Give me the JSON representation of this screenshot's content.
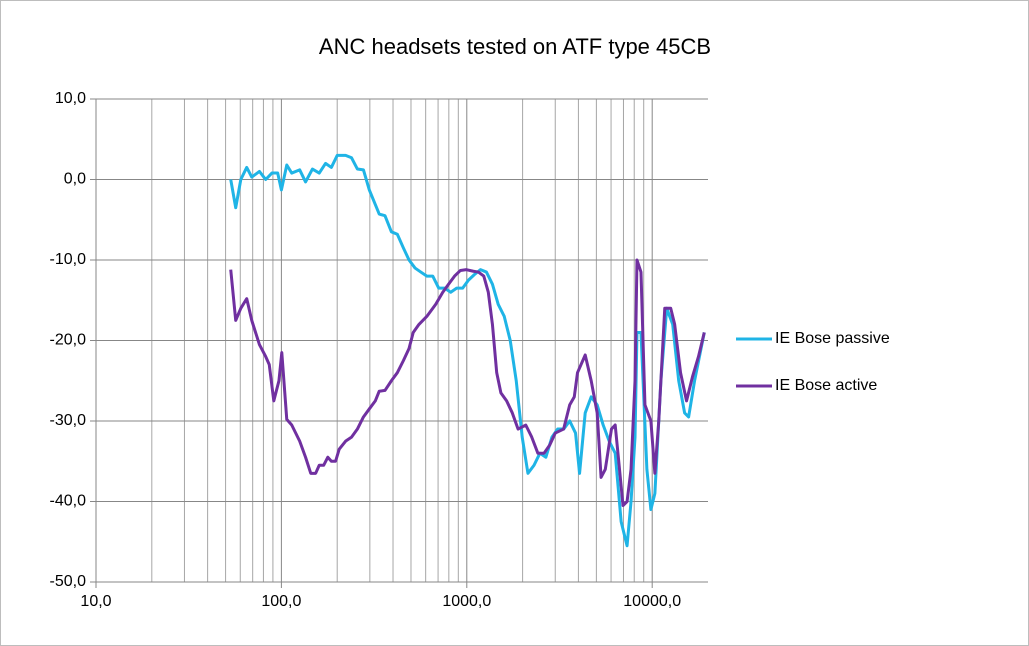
{
  "chart_data": {
    "type": "line",
    "title": "ANC headsets tested on ATF type 45CB",
    "xscale": "log",
    "xlim": [
      10,
      20000
    ],
    "xticks": [
      {
        "value": 10,
        "label": "10,0"
      },
      {
        "value": 100,
        "label": "100,0"
      },
      {
        "value": 1000,
        "label": "1000,0"
      },
      {
        "value": 10000,
        "label": "10000,0"
      }
    ],
    "ylim": [
      -50,
      10
    ],
    "yticks": [
      {
        "value": -50,
        "label": "-50,0"
      },
      {
        "value": -40,
        "label": "-40,0"
      },
      {
        "value": -30,
        "label": "-30,0"
      },
      {
        "value": -20,
        "label": "-20,0"
      },
      {
        "value": -10,
        "label": "-10,0"
      },
      {
        "value": 0,
        "label": "0,0"
      },
      {
        "value": 10,
        "label": "10,0"
      }
    ],
    "grid": true,
    "legend": "right",
    "series": [
      {
        "name": "IE Bose passive",
        "color": "#1fb4e6",
        "x": [
          53.3,
          56.7,
          60.4,
          65,
          69.2,
          76.1,
          82.3,
          88.9,
          95.5,
          100,
          106.9,
          113.7,
          125.5,
          135,
          147,
          160,
          173,
          186,
          200,
          222,
          239,
          257,
          277,
          298,
          337,
          362,
          392,
          422,
          455,
          488,
          526,
          565,
          609,
          655,
          706,
          760,
          819,
          882,
          950,
          1021,
          1100,
          1185,
          1276,
          1375,
          1477,
          1592,
          1715,
          1848,
          1990,
          2137,
          2305,
          2480,
          2670,
          2880,
          3092,
          3330,
          3590,
          3860,
          4058,
          4352,
          4688,
          5050,
          5440,
          5861,
          6316,
          6800,
          7140,
          7320,
          7690,
          8080,
          8279,
          8700,
          9363,
          9840,
          10340,
          11140,
          11977,
          12900,
          13900,
          14960,
          15720,
          16930,
          19100
        ],
        "values": [
          0,
          -3.5,
          0,
          1.5,
          0.3,
          1,
          0,
          0.8,
          0.8,
          -1.3,
          1.8,
          0.8,
          1.2,
          -0.3,
          1.3,
          0.8,
          2,
          1.5,
          3,
          3,
          2.7,
          1.3,
          1.2,
          -1.3,
          -4.3,
          -4.5,
          -6.5,
          -6.8,
          -8.5,
          -10,
          -11,
          -11.5,
          -12,
          -12,
          -13.5,
          -13.5,
          -14,
          -13.5,
          -13.5,
          -12.5,
          -11.8,
          -11.2,
          -11.5,
          -13,
          -15.5,
          -17,
          -20,
          -25,
          -32,
          -36.5,
          -35.5,
          -34,
          -34.5,
          -32,
          -31,
          -31,
          -30,
          -31.5,
          -36.5,
          -29,
          -27,
          -28,
          -30.5,
          -32.5,
          -34,
          -42.5,
          -44.5,
          -45.5,
          -40,
          -32,
          -19,
          -19,
          -36,
          -41,
          -39,
          -25,
          -16,
          -18,
          -25,
          -29,
          -29.5,
          -25,
          -19
        ]
      },
      {
        "name": "IE Bose active",
        "color": "#7030a0",
        "x": [
          53.3,
          56.7,
          60.4,
          65,
          69.2,
          76.1,
          82.3,
          86,
          91,
          97,
          100.5,
          106.9,
          113.7,
          125.5,
          135,
          144,
          153,
          160,
          169,
          178,
          186,
          196,
          205,
          222,
          239,
          257,
          277,
          298,
          321,
          337,
          362,
          392,
          422,
          455,
          488,
          514,
          552,
          609,
          680,
          742,
          798,
          859,
          924,
          995,
          1085,
          1155,
          1235,
          1306,
          1375,
          1450,
          1527,
          1640,
          1760,
          1890,
          2080,
          2240,
          2417,
          2610,
          2800,
          3000,
          3330,
          3590,
          3800,
          3955,
          4352,
          4688,
          5050,
          5300,
          5586,
          6030,
          6316,
          6600,
          6960,
          7320,
          7690,
          8080,
          8279,
          8700,
          9140,
          9840,
          10340,
          10850,
          11690,
          12590,
          13220,
          14220,
          15321,
          16500,
          17770,
          19100
        ],
        "values": [
          -11.2,
          -17.5,
          -16,
          -14.8,
          -17.5,
          -20.5,
          -22,
          -23,
          -27.5,
          -25,
          -21.5,
          -29.8,
          -30.5,
          -32.5,
          -34.5,
          -36.5,
          -36.5,
          -35.5,
          -35.5,
          -34.5,
          -35,
          -35,
          -33.5,
          -32.5,
          -32,
          -31,
          -29.5,
          -28.5,
          -27.5,
          -26.3,
          -26.2,
          -25,
          -24,
          -22.5,
          -21,
          -19,
          -18,
          -17,
          -15.5,
          -14,
          -13,
          -12,
          -11.3,
          -11.2,
          -11.4,
          -11.5,
          -12,
          -14,
          -18,
          -24,
          -26.5,
          -27.5,
          -29,
          -31,
          -30.5,
          -32,
          -34,
          -34,
          -33,
          -31.5,
          -31,
          -28,
          -27,
          -24,
          -21.8,
          -25,
          -29,
          -37,
          -36,
          -31,
          -30.5,
          -35,
          -40.5,
          -40,
          -36,
          -25,
          -10,
          -11.5,
          -28,
          -30,
          -36.5,
          -30,
          -16,
          -16,
          -18,
          -24,
          -27.5,
          -24.5,
          -22,
          -19
        ]
      }
    ]
  }
}
